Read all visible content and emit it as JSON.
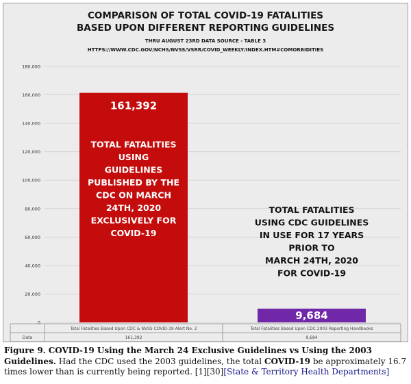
{
  "chart": {
    "title_line1": "COMPARISON OF TOTAL COVID-19 FATALITIES",
    "title_line2": "BASED UPON DIFFERENT REPORTING GUIDELINES",
    "subtitle": "THRU AUGUST 23RD DATA SOURCE - TABLE 3",
    "source_url": "HTTPS://WWW.CDC.GOV/NCHS/NVSS/VSRR/COVID_WEEKLY/INDEX.HTM#COMORBIDITIES",
    "bar1_label_lines": [
      "TOTAL FATALITIES",
      "USING",
      "GUIDELINES",
      "PUBLISHED BY THE",
      "CDC ON MARCH",
      "24TH, 2020",
      "EXCLUSIVELY FOR",
      "COVID-19"
    ],
    "bar2_label_lines": [
      "TOTAL FATALITIES",
      "USING CDC GUIDELINES",
      "IN USE FOR 17 YEARS",
      "PRIOR TO",
      "MARCH 24TH, 2020",
      "FOR COVID-19"
    ],
    "bar1_value_label": "161,392",
    "bar2_value_label": "9,684",
    "table_row_label": "Data"
  },
  "chart_data": {
    "type": "bar",
    "categories": [
      "Total Fatalities Based Upon CDC & NVSS COVID-19 Alert No. 2",
      "Total Fatalities Based Upon CDC 2003 Reporting Handbooks"
    ],
    "values": [
      161392,
      9684
    ],
    "ylim": [
      0,
      180000
    ],
    "yticks": [
      0,
      20000,
      40000,
      60000,
      80000,
      100000,
      120000,
      140000,
      160000,
      180000
    ],
    "ytick_labels": [
      "0",
      "20,000",
      "40,000",
      "60,000",
      "80,000",
      "100,000",
      "120,000",
      "140,000",
      "160,000",
      "180,000"
    ],
    "data_table_values": [
      "161,392",
      "9,684"
    ],
    "bar_colors": [
      "#c40c0c",
      "#7027a8"
    ],
    "grid": true
  },
  "caption": {
    "figure_label": "Figure 9.",
    "bold_title": "COVID-19 Using the March 24 Exclusive Guidelines vs Using the 2003 Guidelines.",
    "text_part1": "Had the CDC used the 2003 guidelines, the total",
    "bold_word": "COVID-19",
    "text_part2": "be approximately 16.7 times lower than is currently being reported. [1][30]",
    "link_text": "[State & Territory Health Departments]"
  }
}
